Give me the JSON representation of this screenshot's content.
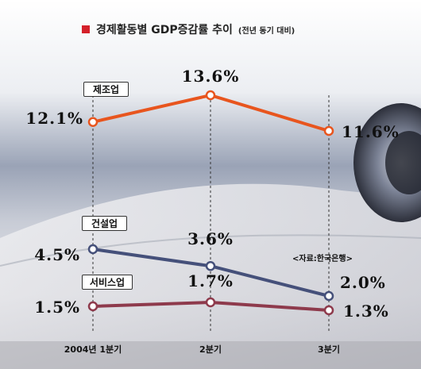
{
  "title": {
    "text": "경제활동별 GDP증감률 추이",
    "note": "(전년 동기 대비)",
    "marker_color": "#d4202a"
  },
  "source": "<자료:한국은행>",
  "chart_data": {
    "type": "line",
    "title": "경제활동별 GDP증감률 추이",
    "subtitle": "(전년 동기 대비)",
    "categories": [
      "2004년 1분기",
      "2분기",
      "3분기"
    ],
    "ylabel": "",
    "xlabel": "",
    "grid": "vertical dashed",
    "legend": "labels on lines",
    "series": [
      {
        "name": "제조업",
        "values": [
          12.1,
          13.6,
          11.6
        ],
        "labels": [
          "12.1%",
          "13.6%",
          "11.6%"
        ],
        "color": "#e8551e"
      },
      {
        "name": "건설업",
        "values": [
          4.5,
          3.6,
          2.0
        ],
        "labels": [
          "4.5%",
          "3.6%",
          "2.0%"
        ],
        "color": "#45507a"
      },
      {
        "name": "서비스업",
        "values": [
          1.5,
          1.7,
          1.3
        ],
        "labels": [
          "1.5%",
          "1.7%",
          "1.3%"
        ],
        "color": "#8e3a4c"
      }
    ]
  }
}
